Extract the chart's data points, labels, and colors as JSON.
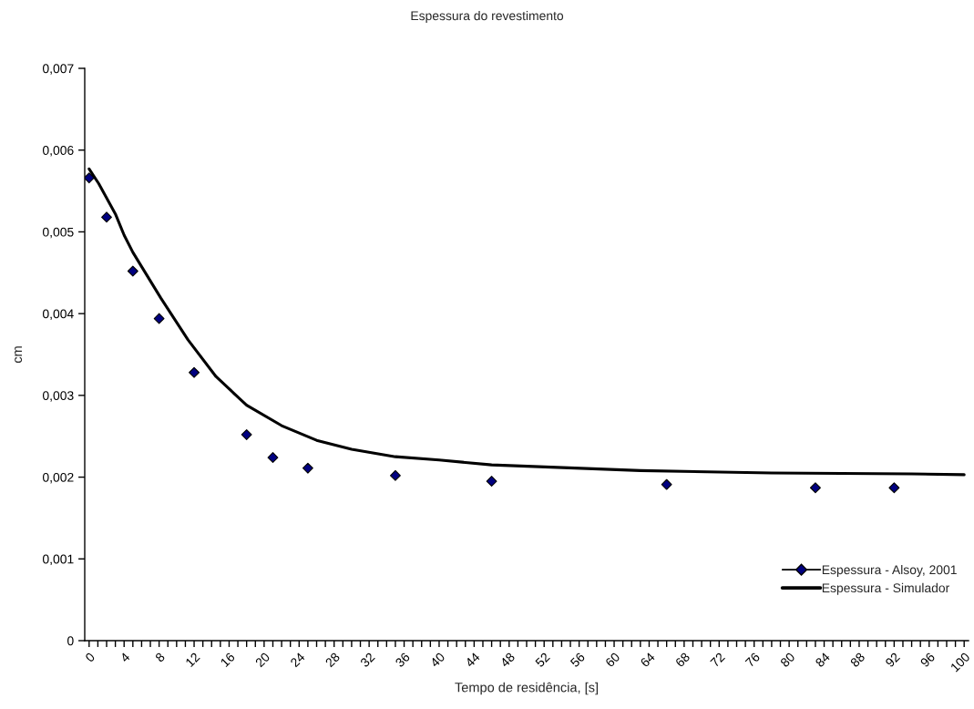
{
  "chart_data": {
    "type": "line",
    "title": "Espessura do revestimento",
    "xlabel": "Tempo de residência, [s]",
    "ylabel": "cm",
    "series": [
      {
        "name": "Espessura - Alsoy, 2001",
        "type": "scatter",
        "color": "#000080",
        "marker": "diamond",
        "x": [
          0,
          2,
          5,
          8,
          12,
          18,
          21,
          25,
          35,
          46,
          66,
          83,
          92
        ],
        "values": [
          0.00566,
          0.00518,
          0.00452,
          0.00394,
          0.00328,
          0.00252,
          0.00224,
          0.00211,
          0.00202,
          0.00195,
          0.00191,
          0.00187,
          0.00187
        ]
      },
      {
        "name": "Espessura - Simulador",
        "color": "#000000",
        "marker": "none",
        "line_style": "solid",
        "x": [
          0,
          1.1,
          3,
          4,
          5,
          8.2,
          11.3,
          14.5,
          18,
          22,
          26,
          30,
          35,
          40,
          46,
          63,
          78,
          94,
          100
        ],
        "values": [
          0.00577,
          0.00559,
          0.00522,
          0.00496,
          0.00475,
          0.00419,
          0.00368,
          0.00323,
          0.00288,
          0.00263,
          0.00245,
          0.00234,
          0.00225,
          0.00221,
          0.00215,
          0.00208,
          0.00205,
          0.00204,
          0.00203
        ]
      }
    ],
    "xlim": [
      -0.5,
      100.5
    ],
    "ylim": [
      0,
      0.007
    ],
    "yticks": [
      {
        "value": 0,
        "label": "0"
      },
      {
        "value": 0.001,
        "label": "0,001"
      },
      {
        "value": 0.002,
        "label": "0,002"
      },
      {
        "value": 0.003,
        "label": "0,003"
      },
      {
        "value": 0.004,
        "label": "0,004"
      },
      {
        "value": 0.005,
        "label": "0,005"
      },
      {
        "value": 0.006,
        "label": "0,006"
      },
      {
        "value": 0.007,
        "label": "0,007"
      }
    ],
    "xticks": [
      0,
      {
        "value": 1,
        "label": null
      },
      {
        "value": 2,
        "label": null
      },
      {
        "value": 3,
        "label": null
      },
      4,
      {
        "value": 5,
        "label": null
      },
      {
        "value": 6,
        "label": null
      },
      {
        "value": 7,
        "label": null
      },
      8,
      {
        "value": 9,
        "label": null
      },
      {
        "value": 10,
        "label": null
      },
      {
        "value": 11,
        "label": null
      },
      12,
      {
        "value": 13,
        "label": null
      },
      {
        "value": 14,
        "label": null
      },
      {
        "value": 15,
        "label": null
      },
      16,
      {
        "value": 17,
        "label": null
      },
      {
        "value": 18,
        "label": null
      },
      {
        "value": 19,
        "label": null
      },
      20,
      {
        "value": 21,
        "label": null
      },
      {
        "value": 22,
        "label": null
      },
      {
        "value": 23,
        "label": null
      },
      24,
      {
        "value": 25,
        "label": null
      },
      {
        "value": 26,
        "label": null
      },
      {
        "value": 27,
        "label": null
      },
      28,
      {
        "value": 29,
        "label": null
      },
      {
        "value": 30,
        "label": null
      },
      {
        "value": 31,
        "label": null
      },
      32,
      {
        "value": 33,
        "label": null
      },
      {
        "value": 34,
        "label": null
      },
      {
        "value": 35,
        "label": null
      },
      36,
      {
        "value": 37,
        "label": null
      },
      {
        "value": 38,
        "label": null
      },
      {
        "value": 39,
        "label": null
      },
      40,
      {
        "value": 41,
        "label": null
      },
      {
        "value": 42,
        "label": null
      },
      {
        "value": 43,
        "label": null
      },
      44,
      {
        "value": 45,
        "label": null
      },
      {
        "value": 46,
        "label": null
      },
      {
        "value": 47,
        "label": null
      },
      48,
      {
        "value": 49,
        "label": null
      },
      {
        "value": 50,
        "label": null
      },
      {
        "value": 51,
        "label": null
      },
      52,
      {
        "value": 53,
        "label": null
      },
      {
        "value": 54,
        "label": null
      },
      {
        "value": 55,
        "label": null
      },
      56,
      {
        "value": 57,
        "label": null
      },
      {
        "value": 58,
        "label": null
      },
      {
        "value": 59,
        "label": null
      },
      60,
      {
        "value": 61,
        "label": null
      },
      {
        "value": 62,
        "label": null
      },
      {
        "value": 63,
        "label": null
      },
      64,
      {
        "value": 65,
        "label": null
      },
      {
        "value": 66,
        "label": null
      },
      {
        "value": 67,
        "label": null
      },
      68,
      {
        "value": 69,
        "label": null
      },
      {
        "value": 70,
        "label": null
      },
      {
        "value": 71,
        "label": null
      },
      72,
      {
        "value": 73,
        "label": null
      },
      {
        "value": 74,
        "label": null
      },
      {
        "value": 75,
        "label": null
      },
      76,
      {
        "value": 77,
        "label": null
      },
      {
        "value": 78,
        "label": null
      },
      {
        "value": 79,
        "label": null
      },
      80,
      {
        "value": 81,
        "label": null
      },
      {
        "value": 82,
        "label": null
      },
      {
        "value": 83,
        "label": null
      },
      84,
      {
        "value": 85,
        "label": null
      },
      {
        "value": 86,
        "label": null
      },
      {
        "value": 87,
        "label": null
      },
      88,
      {
        "value": 89,
        "label": null
      },
      {
        "value": 90,
        "label": null
      },
      {
        "value": 91,
        "label": null
      },
      92,
      {
        "value": 93,
        "label": null
      },
      {
        "value": 94,
        "label": null
      },
      {
        "value": 95,
        "label": null
      },
      96,
      {
        "value": 97,
        "label": null
      },
      {
        "value": 98,
        "label": null
      },
      {
        "value": 99,
        "label": null
      },
      100
    ],
    "grid": false,
    "legend": "bottom right"
  }
}
